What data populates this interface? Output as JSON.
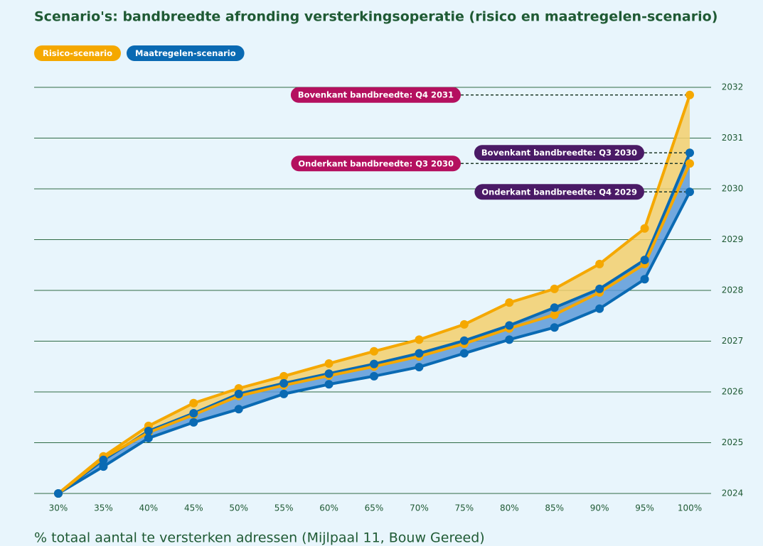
{
  "chart_data": {
    "type": "band-line",
    "title": "Scenario's: bandbreedte afronding versterkingsoperatie (risico en maatregelen-scenario)",
    "x_label": "% totaal aantal te versterken adressen (Mijlpaal 11, Bouw Gereed)",
    "categories": [
      "30%",
      "35%",
      "40%",
      "45%",
      "50%",
      "55%",
      "60%",
      "65%",
      "70%",
      "75%",
      "80%",
      "85%",
      "90%",
      "95%",
      "100%"
    ],
    "series": [
      {
        "name": "Risico-scenario",
        "color": "#f5a800",
        "band_color": "#f3cf6c",
        "label_color": "#b4105f",
        "values": [
          2024.0,
          2024.73,
          2025.33,
          2025.78,
          2026.07,
          2026.31,
          2026.56,
          2026.8,
          2027.03,
          2027.33,
          2027.76,
          2028.03,
          2028.52,
          2029.22,
          2031.85
        ],
        "lower": [
          2024.0,
          2024.7,
          2025.2,
          2025.55,
          2025.92,
          2026.13,
          2026.32,
          2026.5,
          2026.7,
          2026.95,
          2027.25,
          2027.52,
          2027.96,
          2028.52,
          2030.5
        ],
        "values_label": "Bovenkant bandbreedte: Q4 2031",
        "lower_label": "Onderkant bandbreedte: Q3 2030"
      },
      {
        "name": "Maatregelen-scenario",
        "color": "#0a6ab3",
        "band_color": "#5d9ad8",
        "label_color": "#4a1a66",
        "values": [
          2024.0,
          2024.66,
          2025.23,
          2025.58,
          2025.96,
          2026.17,
          2026.36,
          2026.55,
          2026.76,
          2027.01,
          2027.31,
          2027.66,
          2028.03,
          2028.6,
          2030.71
        ],
        "lower": [
          2024.0,
          2024.53,
          2025.09,
          2025.4,
          2025.66,
          2025.96,
          2026.15,
          2026.31,
          2026.49,
          2026.76,
          2027.03,
          2027.27,
          2027.64,
          2028.22,
          2029.94
        ],
        "values_label": "Bovenkant bandbreedte: Q3 2030",
        "lower_label": "Onderkant bandbreedte: Q4 2029"
      }
    ],
    "ylim": [
      2024,
      2032
    ],
    "yticks": [
      2024,
      2025,
      2026,
      2027,
      2028,
      2029,
      2030,
      2031,
      2032
    ],
    "grid": true,
    "legend": "top-left",
    "grid_color": "#2f6b45"
  }
}
